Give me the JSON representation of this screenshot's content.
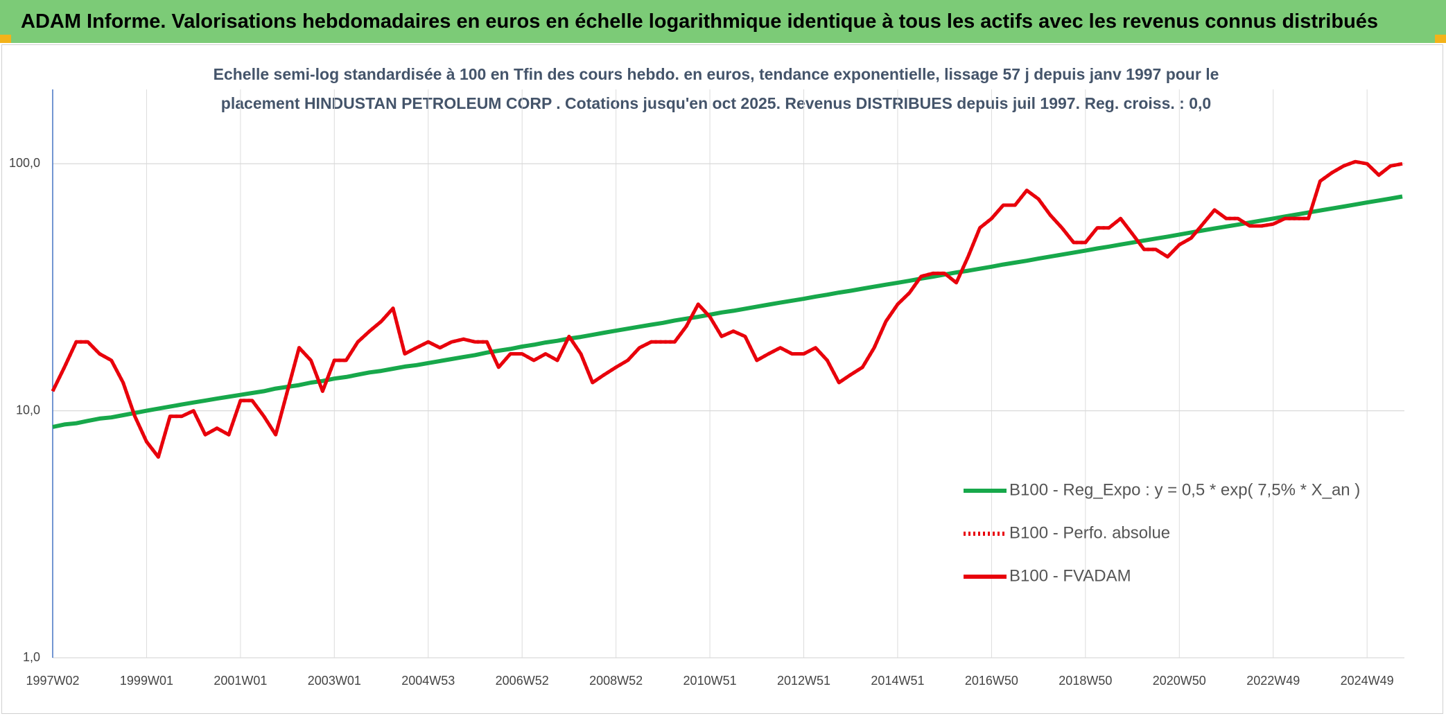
{
  "chart_data": {
    "type": "line",
    "title": "ADAM Informe. Valorisations hebdomadaires en euros en échelle logarithmique identique à tous les actifs avec les revenus connus distribués",
    "subtitle": "Echelle semi-log standardisée à 100 en Tfin des cours hebdo. en euros, tendance exponentielle, lissage 57 j depuis janv 1997 pour le placement HINDUSTAN PETROLEUM CORP . Cotations jusqu'en oct 2025. Revenus DISTRIBUES depuis juil 1997. Reg. croiss. : 0,0",
    "categories": [
      "1997W02",
      null,
      null,
      null,
      null,
      null,
      null,
      null,
      "1999W01",
      null,
      null,
      null,
      null,
      null,
      null,
      null,
      "2001W01",
      null,
      null,
      null,
      null,
      null,
      null,
      null,
      "2003W01",
      null,
      null,
      null,
      null,
      null,
      null,
      null,
      "2004W53",
      null,
      null,
      null,
      null,
      null,
      null,
      null,
      "2006W52",
      null,
      null,
      null,
      null,
      null,
      null,
      null,
      "2008W52",
      null,
      null,
      null,
      null,
      null,
      null,
      null,
      "2010W51",
      null,
      null,
      null,
      null,
      null,
      null,
      null,
      "2012W51",
      null,
      null,
      null,
      null,
      null,
      null,
      null,
      "2014W51",
      null,
      null,
      null,
      null,
      null,
      null,
      null,
      "2016W50",
      null,
      null,
      null,
      null,
      null,
      null,
      null,
      "2018W50",
      null,
      null,
      null,
      null,
      null,
      null,
      null,
      "2020W50",
      null,
      null,
      null,
      null,
      null,
      null,
      null,
      "2022W49",
      null,
      null,
      null,
      null,
      null,
      null,
      null,
      "2024W49",
      null,
      null,
      null
    ],
    "series": [
      {
        "name": "B100 - Reg_Expo : y = 0,5 * exp( 7,5% *  X_an )",
        "color": "#17a84b",
        "style": "solid",
        "values": [
          8.6,
          8.8,
          8.9,
          9.1,
          9.3,
          9.4,
          9.6,
          9.8,
          10.0,
          10.2,
          10.4,
          10.6,
          10.8,
          11.0,
          11.2,
          11.4,
          11.6,
          11.8,
          12.0,
          12.3,
          12.5,
          12.7,
          13.0,
          13.2,
          13.5,
          13.7,
          14.0,
          14.3,
          14.5,
          14.8,
          15.1,
          15.3,
          15.6,
          15.9,
          16.2,
          16.5,
          16.8,
          17.2,
          17.5,
          17.8,
          18.2,
          18.5,
          18.9,
          19.2,
          19.6,
          19.9,
          20.3,
          20.7,
          21.1,
          21.5,
          21.9,
          22.3,
          22.7,
          23.2,
          23.6,
          24.0,
          24.5,
          25.0,
          25.4,
          25.9,
          26.4,
          26.9,
          27.4,
          27.9,
          28.4,
          29.0,
          29.5,
          30.1,
          30.6,
          31.2,
          31.8,
          32.4,
          33.0,
          33.6,
          34.3,
          34.9,
          35.6,
          36.3,
          36.9,
          37.6,
          38.3,
          39.1,
          39.8,
          40.5,
          41.3,
          42.1,
          42.9,
          43.7,
          44.5,
          45.4,
          46.2,
          47.1,
          48.0,
          48.9,
          49.8,
          50.7,
          51.7,
          52.7,
          53.7,
          54.7,
          55.7,
          56.7,
          57.8,
          58.9,
          60.0,
          61.2,
          62.3,
          63.5,
          64.7,
          65.9,
          67.1,
          68.4,
          69.7,
          71.0,
          72.3,
          73.7
        ]
      },
      {
        "name": "B100 - Perfo. absolue",
        "color": "#e8000b",
        "style": "dotted",
        "values": [
          12,
          15,
          19,
          19,
          17,
          16,
          13,
          9.5,
          7.5,
          6.5,
          9.5,
          9.5,
          10,
          8,
          8.5,
          8,
          11,
          11,
          9.5,
          8,
          12,
          18,
          16,
          12,
          16,
          16,
          19,
          21,
          23,
          26,
          17,
          18,
          19,
          18,
          19,
          19.5,
          19,
          19,
          15,
          17,
          17,
          16,
          17,
          16,
          20,
          17,
          13,
          14,
          15,
          16,
          18,
          19,
          19,
          19,
          22,
          27,
          24,
          20,
          21,
          20,
          16,
          17,
          18,
          17,
          17,
          18,
          16,
          13,
          14,
          15,
          18,
          23,
          27,
          30,
          35,
          36,
          36,
          33,
          42,
          55,
          60,
          68,
          68,
          78,
          72,
          62,
          55,
          48,
          48,
          55,
          55,
          60,
          52,
          45,
          45,
          42,
          47,
          50,
          57,
          65,
          60,
          60,
          56,
          56,
          57,
          60,
          60,
          60,
          85,
          92,
          98,
          102,
          100,
          90,
          98,
          100
        ]
      },
      {
        "name": "B100 - FVADAM",
        "color": "#e8000b",
        "style": "solid",
        "values": [
          12,
          15,
          19,
          19,
          17,
          16,
          13,
          9.5,
          7.5,
          6.5,
          9.5,
          9.5,
          10,
          8,
          8.5,
          8,
          11,
          11,
          9.5,
          8,
          12,
          18,
          16,
          12,
          16,
          16,
          19,
          21,
          23,
          26,
          17,
          18,
          19,
          18,
          19,
          19.5,
          19,
          19,
          15,
          17,
          17,
          16,
          17,
          16,
          20,
          17,
          13,
          14,
          15,
          16,
          18,
          19,
          19,
          19,
          22,
          27,
          24,
          20,
          21,
          20,
          16,
          17,
          18,
          17,
          17,
          18,
          16,
          13,
          14,
          15,
          18,
          23,
          27,
          30,
          35,
          36,
          36,
          33,
          42,
          55,
          60,
          68,
          68,
          78,
          72,
          62,
          55,
          48,
          48,
          55,
          55,
          60,
          52,
          45,
          45,
          42,
          47,
          50,
          57,
          65,
          60,
          60,
          56,
          56,
          57,
          60,
          60,
          60,
          85,
          92,
          98,
          102,
          100,
          90,
          98,
          100
        ]
      }
    ],
    "log_scale": true,
    "ylim": [
      1,
      200
    ],
    "yticks": [
      {
        "value": 1,
        "label": "1,0"
      },
      {
        "value": 10,
        "label": "10,0"
      },
      {
        "value": 100,
        "label": "100,0"
      }
    ],
    "grid": true,
    "legend": "right"
  }
}
